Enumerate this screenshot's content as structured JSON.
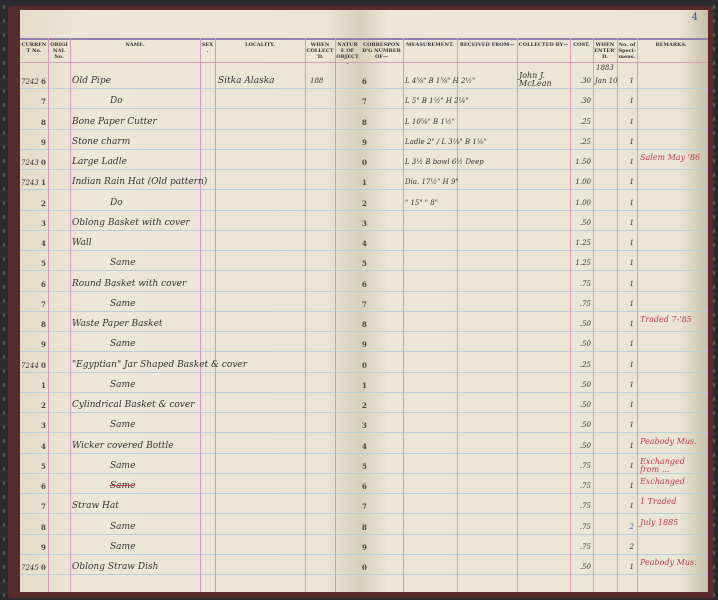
{
  "page_number": "4",
  "left_headers": [
    "CURRENT No.",
    "ORIGINAL No.",
    "NAME.",
    "SEX.",
    "LOCALITY.",
    "WHEN COLLECT'D.",
    "NATURE OF OBJECT."
  ],
  "right_headers": [
    "CORRESPOND'G NUMBER OF—",
    "MEASUREMENT.",
    "RECEIVED FROM—",
    "COLLECTED BY—",
    "COST.",
    "WHEN ENTER'D.",
    "No. of Speci-mens.",
    "REMARKS."
  ],
  "year_entered": "1883",
  "rows": [
    {
      "prefix": "7242",
      "digit": "6",
      "name": "Old Pipe",
      "locality": "Sitka   Alaska",
      "when_collected": "188",
      "corr": "6",
      "measurement": "L 4⅝\" B 1⅝\" H 2½\"",
      "collected_by": "John J. McLean",
      "cost": ".30",
      "entered": "Jan 10",
      "count": "1",
      "remarks": ""
    },
    {
      "prefix": "",
      "digit": "7",
      "name": "Do",
      "corr": "7",
      "measurement": "L 5\" B 1½\" H 2¼\"",
      "cost": ".30",
      "count": "1",
      "remarks": ""
    },
    {
      "prefix": "",
      "digit": "8",
      "name": "Bone Paper Cutter",
      "corr": "8",
      "measurement": "L 10⅝\" B 1½\"",
      "cost": ".25",
      "count": "1",
      "remarks": ""
    },
    {
      "prefix": "",
      "digit": "9",
      "name": "Stone charm",
      "corr": "9",
      "measurement": "Ladle 2\" / L 3⅛\" B 1¼\"",
      "cost": ".25",
      "count": "1",
      "remarks": ""
    },
    {
      "prefix": "7243",
      "digit": "0",
      "name": "Large Ladle",
      "corr": "0",
      "measurement": "L 3½ B bowl 6½ Deep",
      "cost": "1.50",
      "count": "1",
      "remarks": "Salem May '86"
    },
    {
      "prefix": "7243",
      "digit": "1",
      "name": "Indian Rain Hat (Old pattern)",
      "corr": "1",
      "measurement": "Dia. 17½\" H 9\"",
      "cost": "1.00",
      "count": "1",
      "remarks": ""
    },
    {
      "prefix": "",
      "digit": "2",
      "name": "Do",
      "corr": "2",
      "measurement": "\" 15\" \" 8\"",
      "cost": "1.00",
      "count": "1",
      "remarks": ""
    },
    {
      "prefix": "",
      "digit": "3",
      "name": "Oblong Basket with cover",
      "corr": "3",
      "cost": ".50",
      "count": "1",
      "remarks": ""
    },
    {
      "prefix": "",
      "digit": "4",
      "name": "Wall",
      "corr": "4",
      "cost": "1.25",
      "count": "1",
      "remarks": ""
    },
    {
      "prefix": "",
      "digit": "5",
      "name": "Same",
      "corr": "5",
      "cost": "1.25",
      "count": "1",
      "remarks": ""
    },
    {
      "prefix": "",
      "digit": "6",
      "name": "Round Basket with cover",
      "corr": "6",
      "cost": ".75",
      "count": "1",
      "remarks": ""
    },
    {
      "prefix": "",
      "digit": "7",
      "name": "Same",
      "corr": "7",
      "cost": ".75",
      "count": "1",
      "remarks": ""
    },
    {
      "prefix": "",
      "digit": "8",
      "name": "Waste Paper Basket",
      "corr": "8",
      "cost": ".50",
      "count": "1",
      "remarks": "Traded 7-'85"
    },
    {
      "prefix": "",
      "digit": "9",
      "name": "Same",
      "corr": "9",
      "cost": ".50",
      "count": "1",
      "remarks": ""
    },
    {
      "prefix": "7244",
      "digit": "0",
      "name": "\"Egyptian\" Jar Shaped Basket & cover",
      "corr": "0",
      "cost": ".25",
      "count": "1",
      "remarks": ""
    },
    {
      "prefix": "",
      "digit": "1",
      "name": "Same",
      "corr": "1",
      "cost": ".50",
      "count": "1",
      "remarks": ""
    },
    {
      "prefix": "",
      "digit": "2",
      "name": "Cylindrical Basket & cover",
      "corr": "2",
      "cost": ".50",
      "count": "1",
      "remarks": ""
    },
    {
      "prefix": "",
      "digit": "3",
      "name": "Same",
      "corr": "3",
      "cost": ".50",
      "count": "1",
      "remarks": ""
    },
    {
      "prefix": "",
      "digit": "4",
      "name": "Wicker covered Bottle",
      "corr": "4",
      "cost": ".50",
      "count": "1",
      "remarks": "Peabody Mus."
    },
    {
      "prefix": "",
      "digit": "5",
      "name": "Same",
      "corr": "5",
      "cost": ".75",
      "count": "1",
      "remarks": "Exchanged from ..."
    },
    {
      "prefix": "",
      "digit": "6",
      "name": "Same",
      "struck": true,
      "corr": "6",
      "cost": ".75",
      "count": "1",
      "remarks": "Exchanged"
    },
    {
      "prefix": "",
      "digit": "7",
      "name": "Straw Hat",
      "corr": "7",
      "cost": ".75",
      "count": "1",
      "remarks": "1 Traded"
    },
    {
      "prefix": "",
      "digit": "8",
      "name": "Same",
      "corr": "8",
      "cost": ".75",
      "count": "2",
      "count_blue": true,
      "remarks": "July 1885"
    },
    {
      "prefix": "",
      "digit": "9",
      "name": "Same",
      "corr": "9",
      "cost": ".75",
      "count": "2",
      "remarks": ""
    },
    {
      "prefix": "7245",
      "digit": "0",
      "name": "Oblong Straw Dish",
      "corr": "0",
      "cost": ".50",
      "count": "1",
      "remarks": "Peabody Mus."
    }
  ]
}
